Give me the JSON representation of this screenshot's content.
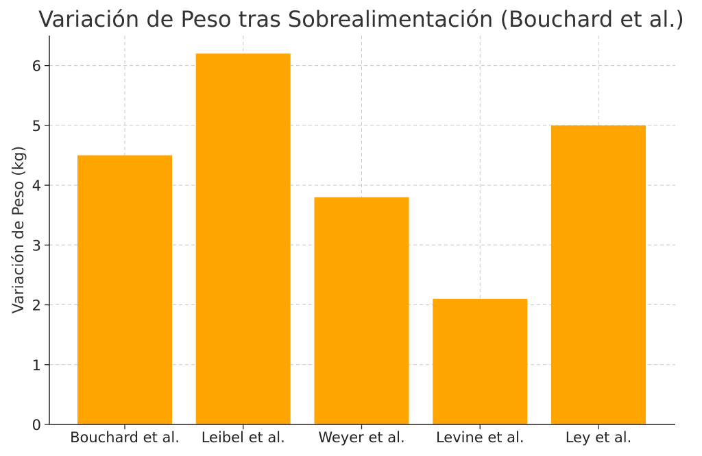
{
  "chart_data": {
    "type": "bar",
    "title": "Variación de Peso tras Sobrealimentación (Bouchard et al.)",
    "xlabel": "",
    "ylabel": "Variación de Peso (kg)",
    "categories": [
      "Bouchard et al.",
      "Leibel et al.",
      "Weyer et al.",
      "Levine et al.",
      "Ley et al."
    ],
    "values": [
      4.5,
      6.2,
      3.8,
      2.1,
      5.0
    ],
    "ylim": [
      0,
      6.5
    ],
    "yticks": [
      "0",
      "1",
      "2",
      "3",
      "4",
      "5",
      "6"
    ],
    "grid": true,
    "bar_color": "#ffa500"
  }
}
